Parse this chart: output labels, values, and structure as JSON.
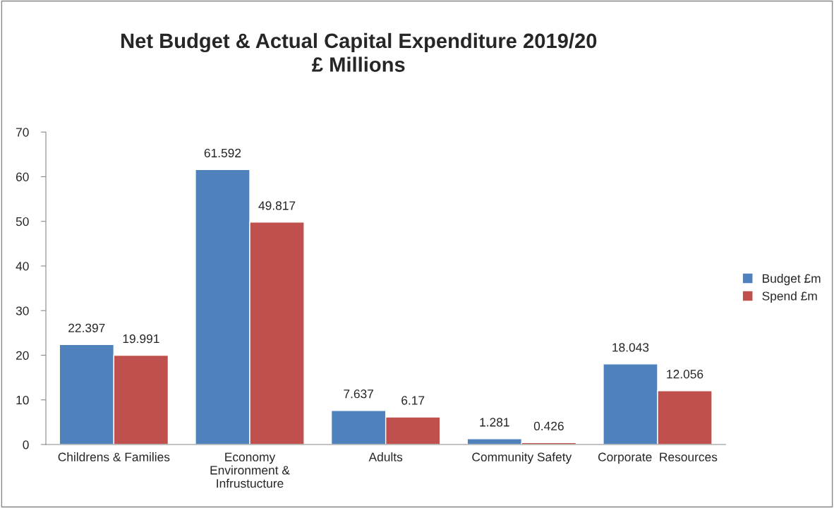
{
  "chart_data": {
    "type": "bar",
    "title": "Net Budget & Actual Capital Expenditure 2019/20\n£ Millions",
    "categories": [
      "Childrens & Families",
      "Economy\nEnvironment &\nInfrustucture",
      "Adults",
      "Community Safety",
      "Corporate  Resources"
    ],
    "series": [
      {
        "name": "Budget £m",
        "color": "#4f81bd",
        "values": [
          22.397,
          61.592,
          7.637,
          1.281,
          18.043
        ]
      },
      {
        "name": "Spend £m",
        "color": "#c0504d",
        "values": [
          19.991,
          49.817,
          6.17,
          0.426,
          12.056
        ]
      }
    ],
    "ylim": [
      0,
      70
    ],
    "yticks": [
      0,
      10,
      20,
      30,
      40,
      50,
      60,
      70
    ],
    "data_labels": true,
    "legend": "right",
    "grid": false
  }
}
